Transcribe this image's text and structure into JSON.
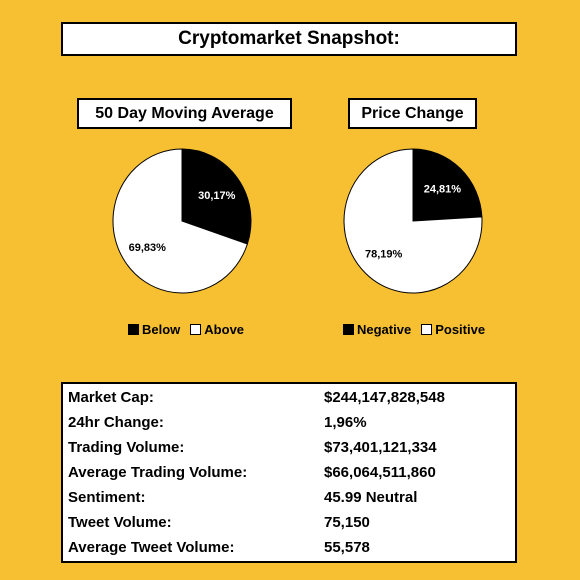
{
  "title": "Cryptomarket Snapshot:",
  "chart_data": [
    {
      "type": "pie",
      "title": "50 Day Moving Average",
      "slices": [
        {
          "label": "Below",
          "value": 30.17,
          "display": "30,17%",
          "color": "#000000",
          "label_color": "#FFFFFF"
        },
        {
          "label": "Above",
          "value": 69.83,
          "display": "69,83%",
          "color": "#FFFFFF",
          "label_color": "#000000"
        }
      ],
      "legend_placement": "bottom"
    },
    {
      "type": "pie",
      "title": "Price Change",
      "slices": [
        {
          "label": "Negative",
          "value": 24.81,
          "display": "24,81%",
          "color": "#000000",
          "label_color": "#FFFFFF"
        },
        {
          "label": "Positive",
          "value": 78.19,
          "display": "78,19%",
          "color": "#FFFFFF",
          "label_color": "#000000"
        }
      ],
      "legend_placement": "bottom"
    }
  ],
  "stats": [
    {
      "label": "Market Cap:",
      "value": "$244,147,828,548"
    },
    {
      "label": "24hr Change:",
      "value": "1,96%"
    },
    {
      "label": "Trading Volume:",
      "value": "$73,401,121,334"
    },
    {
      "label": "Average Trading Volume:",
      "value": "$66,064,511,860"
    },
    {
      "label": "Sentiment:",
      "value": "45.99 Neutral"
    },
    {
      "label": "Tweet Volume:",
      "value": "75,150"
    },
    {
      "label": "Average Tweet Volume:",
      "value": "55,578"
    }
  ]
}
